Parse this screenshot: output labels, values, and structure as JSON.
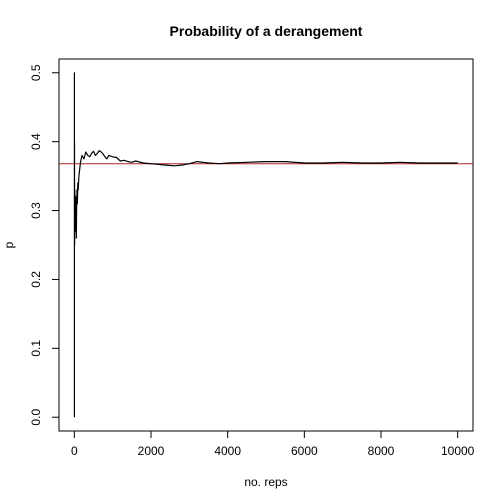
{
  "chart_data": {
    "type": "line",
    "title": "Probability of a derangement",
    "xlabel": "no. reps",
    "ylabel": "p",
    "xlim": [
      -400,
      10400
    ],
    "ylim": [
      -0.02,
      0.52
    ],
    "xticks": [
      0,
      2000,
      4000,
      6000,
      8000,
      10000
    ],
    "xtick_labels": [
      "0",
      "2000",
      "4000",
      "6000",
      "8000",
      "10000"
    ],
    "yticks": [
      0.0,
      0.1,
      0.2,
      0.3,
      0.4,
      0.5
    ],
    "ytick_labels": [
      "0.0",
      "0.1",
      "0.2",
      "0.3",
      "0.4",
      "0.5"
    ],
    "grid": false,
    "reference_line": {
      "y": 0.3679,
      "color": "#b22222"
    },
    "series_color": "#000000",
    "series": [
      {
        "x": [
          1,
          2,
          3,
          5,
          8,
          12,
          20,
          30,
          40,
          50,
          60,
          70,
          80,
          90,
          100,
          120,
          140,
          160,
          180,
          200,
          250,
          300,
          350,
          400,
          450,
          500,
          550,
          600,
          650,
          700,
          750,
          800,
          850,
          900,
          1000,
          1100,
          1200,
          1300,
          1400,
          1500,
          1600,
          1800,
          2000,
          2200,
          2400,
          2600,
          2800,
          3000,
          3200,
          3500,
          3800,
          4000,
          4500,
          5000,
          5500,
          6000,
          6500,
          7000,
          7500,
          8000,
          8500,
          9000,
          9500,
          10000
        ],
        "y": [
          0.0,
          0.5,
          0.33,
          0.4,
          0.25,
          0.33,
          0.3,
          0.27,
          0.32,
          0.26,
          0.3,
          0.33,
          0.31,
          0.34,
          0.33,
          0.35,
          0.36,
          0.37,
          0.375,
          0.38,
          0.375,
          0.385,
          0.38,
          0.378,
          0.383,
          0.386,
          0.38,
          0.383,
          0.387,
          0.385,
          0.382,
          0.378,
          0.375,
          0.38,
          0.378,
          0.377,
          0.372,
          0.373,
          0.371,
          0.37,
          0.372,
          0.369,
          0.368,
          0.367,
          0.366,
          0.365,
          0.366,
          0.368,
          0.371,
          0.369,
          0.368,
          0.369,
          0.37,
          0.371,
          0.371,
          0.369,
          0.369,
          0.37,
          0.369,
          0.369,
          0.37,
          0.369,
          0.369,
          0.369
        ]
      }
    ]
  }
}
